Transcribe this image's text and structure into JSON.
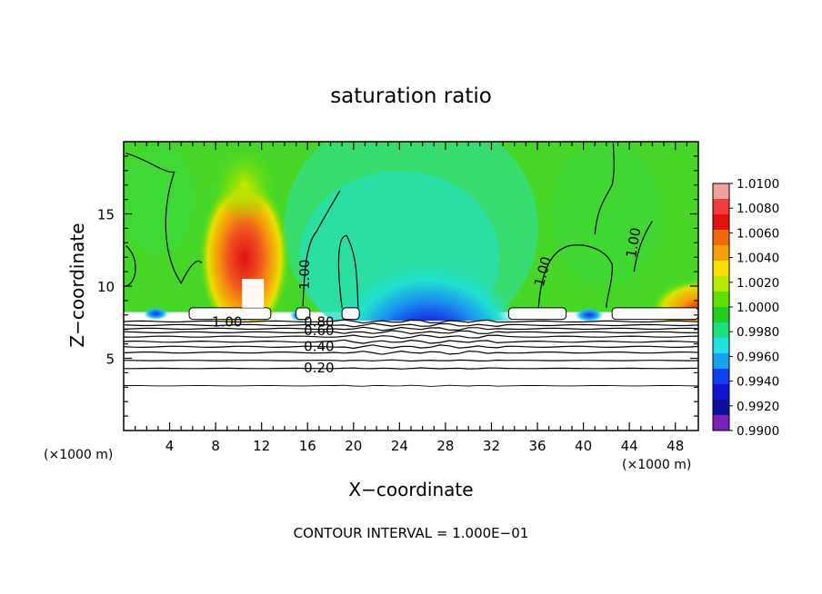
{
  "chart_data": {
    "type": "heatmap",
    "title": "saturation ratio",
    "xlabel": "X−coordinate",
    "ylabel": "Z−coordinate",
    "x_unit_left": "(×1000 m)",
    "x_unit_right": "(×1000 m)",
    "xlim": [
      0,
      50
    ],
    "ylim": [
      0,
      20
    ],
    "xticks": [
      4,
      8,
      12,
      16,
      20,
      24,
      28,
      32,
      36,
      40,
      44,
      48
    ],
    "yticks": [
      5,
      10,
      15
    ],
    "footer": "CONTOUR INTERVAL = 1.000E−01",
    "colorbar": {
      "labels": [
        "1.0100",
        "1.0080",
        "1.0060",
        "1.0040",
        "1.0020",
        "1.0000",
        "0.9980",
        "0.9960",
        "0.9940",
        "0.9920",
        "0.9900"
      ],
      "colors": [
        "#f4a0a0",
        "#f23c3c",
        "#e21212",
        "#f06a0c",
        "#f4a00a",
        "#f6e000",
        "#b8e800",
        "#60e000",
        "#22cc22",
        "#1edc80",
        "#20e0e0",
        "#1aa0f0",
        "#1040f0",
        "#1414d0",
        "#1010a0",
        "#7b20b8"
      ]
    },
    "contour_labels": [
      {
        "text": "1.00",
        "x": 15.8,
        "y": 10.8,
        "rotate": -90
      },
      {
        "text": "1.00",
        "x": 36.5,
        "y": 11.0,
        "rotate": -75
      },
      {
        "text": "1.00",
        "x": 44.4,
        "y": 13.0,
        "rotate": -80
      },
      {
        "text": "1.00",
        "x": 9.0,
        "y": 7.5,
        "rotate": 0
      },
      {
        "text": "0.80",
        "x": 17.0,
        "y": 7.5,
        "rotate": 0
      },
      {
        "text": "0.60",
        "x": 17.0,
        "y": 6.9,
        "rotate": 0
      },
      {
        "text": "0.40",
        "x": 17.0,
        "y": 5.8,
        "rotate": 0
      },
      {
        "text": "0.20",
        "x": 17.0,
        "y": 4.3,
        "rotate": 0
      }
    ]
  }
}
